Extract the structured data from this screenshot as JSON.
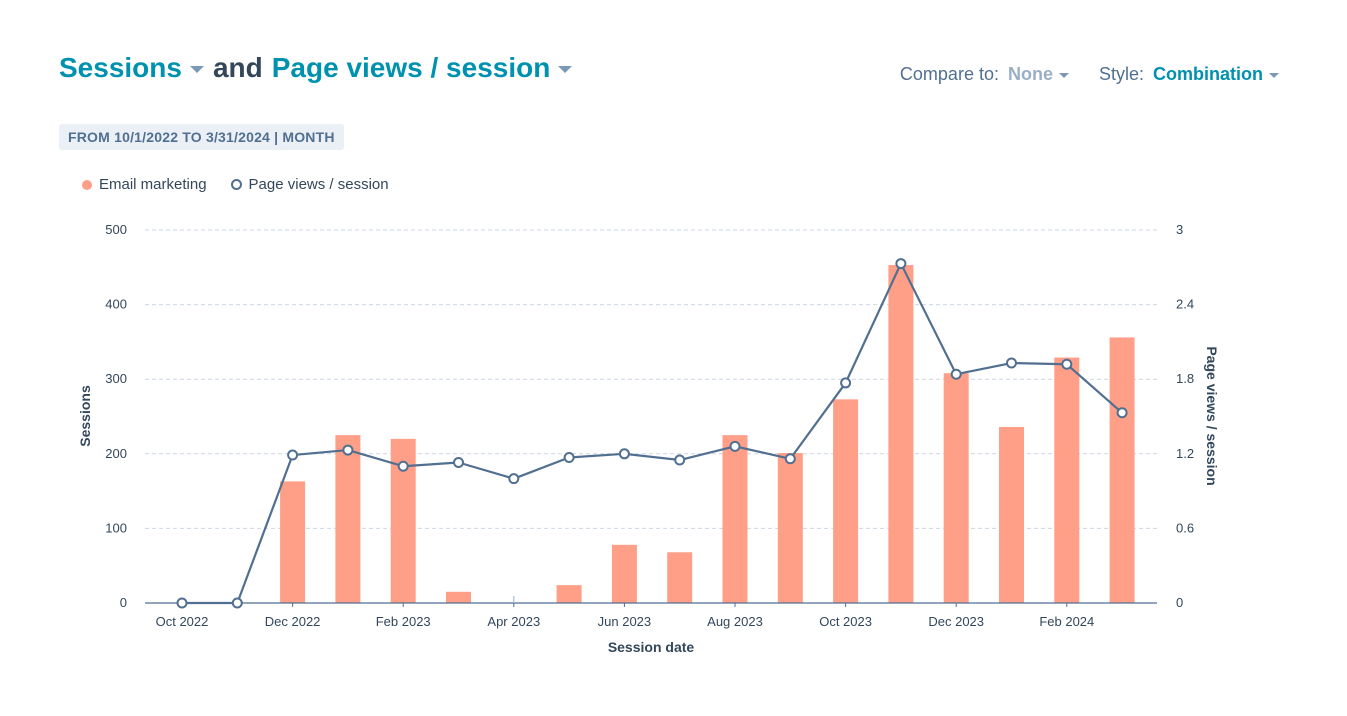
{
  "header": {
    "metric1": "Sessions",
    "connector": "and",
    "metric2": "Page views / session"
  },
  "controls": {
    "compare_label": "Compare to:",
    "compare_value": "None",
    "style_label": "Style:",
    "style_value": "Combination"
  },
  "date_range": "FROM 10/1/2022 TO 3/31/2024 | MONTH",
  "legend": {
    "bar": "Email marketing",
    "line": "Page views / session"
  },
  "colors": {
    "bar": "#ff9f88",
    "line": "#516f90",
    "accent": "#0091ae"
  },
  "chart_data": {
    "type": "bar",
    "xlabel": "Session date",
    "ylabel_left": "Sessions",
    "ylabel_right": "Page views / session",
    "categories": [
      "Oct 2022",
      "Nov 2022",
      "Dec 2022",
      "Jan 2023",
      "Feb 2023",
      "Mar 2023",
      "Apr 2023",
      "May 2023",
      "Jun 2023",
      "Jul 2023",
      "Aug 2023",
      "Sep 2023",
      "Oct 2023",
      "Nov 2023",
      "Dec 2023",
      "Jan 2024",
      "Feb 2024",
      "Mar 2024"
    ],
    "tick_labels": [
      "Oct 2022",
      "",
      "Dec 2022",
      "",
      "Feb 2023",
      "",
      "Apr 2023",
      "",
      "Jun 2023",
      "",
      "Aug 2023",
      "",
      "Oct 2023",
      "",
      "Dec 2023",
      "",
      "Feb 2024",
      ""
    ],
    "series": [
      {
        "name": "Email marketing",
        "axis": "left",
        "kind": "bar",
        "values": [
          0,
          0,
          163,
          225,
          220,
          15,
          0,
          24,
          78,
          68,
          225,
          201,
          273,
          453,
          308,
          236,
          329,
          356
        ]
      },
      {
        "name": "Page views / session",
        "axis": "right",
        "kind": "line",
        "values": [
          0,
          0,
          1.19,
          1.23,
          1.1,
          1.13,
          1.0,
          1.17,
          1.2,
          1.15,
          1.26,
          1.16,
          1.77,
          2.73,
          1.84,
          1.93,
          1.92,
          1.53
        ]
      }
    ],
    "ylim_left": [
      0,
      500
    ],
    "yticks_left": [
      "0",
      "100",
      "200",
      "300",
      "400",
      "500"
    ],
    "ylim_right": [
      0,
      3
    ],
    "yticks_right": [
      "0",
      "0.6",
      "1.2",
      "1.8",
      "2.4",
      "3"
    ],
    "grid": true,
    "legend_position": "top-left"
  }
}
